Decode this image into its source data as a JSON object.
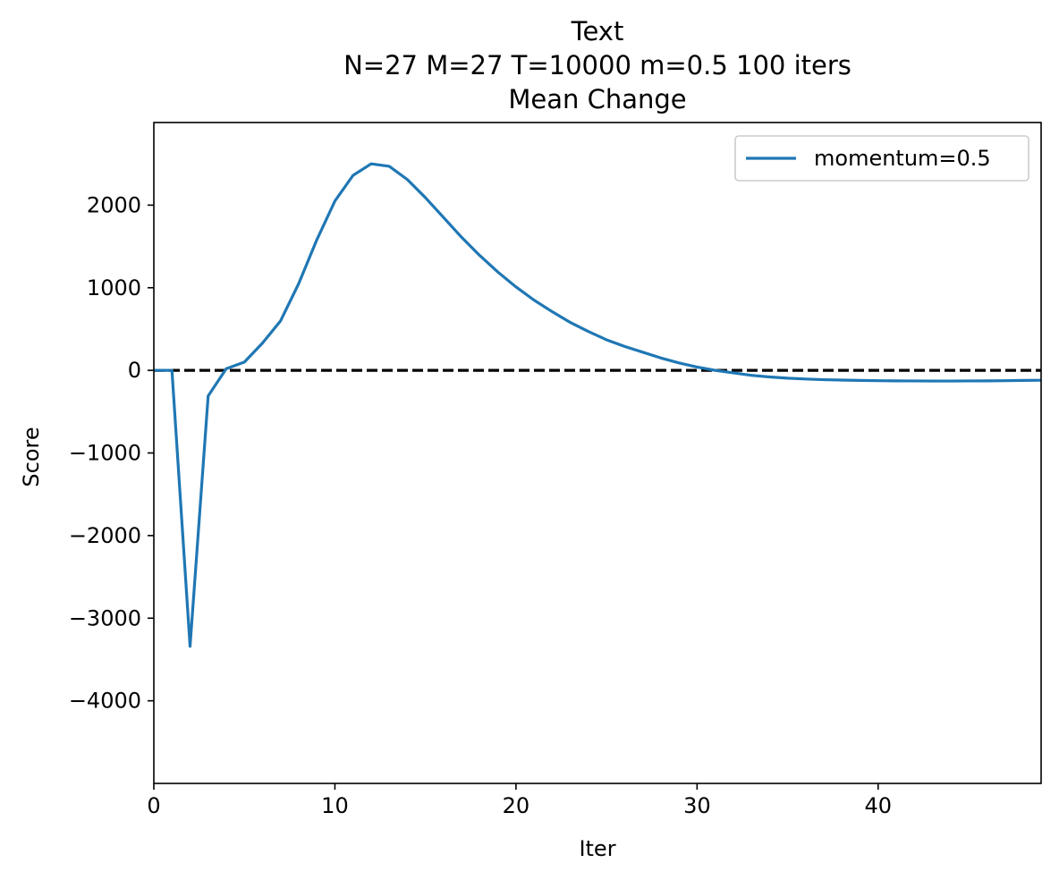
{
  "chart_data": {
    "type": "line",
    "title_lines": [
      "Text",
      "N=27 M=27 T=10000 m=0.5 100 iters",
      "Mean Change"
    ],
    "xlabel": "Iter",
    "ylabel": "Score",
    "xlim": [
      0,
      49
    ],
    "ylim": [
      -5000,
      3000
    ],
    "x_ticks": [
      0,
      10,
      20,
      30,
      40
    ],
    "x_tick_labels": [
      "0",
      "10",
      "20",
      "30",
      "40"
    ],
    "y_ticks": [
      2000,
      1000,
      0,
      -1000,
      -2000,
      -3000,
      -4000
    ],
    "y_tick_labels": [
      "2000",
      "1000",
      "0",
      "−1000",
      "−2000",
      "−3000",
      "−4000"
    ],
    "grid": false,
    "legend_position": "top-right",
    "reference_line": {
      "y": 0,
      "style": "dashed",
      "color": "#000000"
    },
    "series": [
      {
        "name": "momentum=0.5",
        "color": "#1f77b4",
        "x": [
          0,
          1,
          2,
          3,
          4,
          5,
          6,
          7,
          8,
          9,
          10,
          11,
          12,
          13,
          14,
          15,
          16,
          17,
          18,
          19,
          20,
          21,
          22,
          23,
          24,
          25,
          26,
          27,
          28,
          29,
          30,
          31,
          32,
          33,
          34,
          35,
          36,
          37,
          38,
          39,
          40,
          41,
          42,
          43,
          44,
          45,
          46,
          47,
          48,
          49
        ],
        "y": [
          0,
          0,
          -3340,
          -310,
          20,
          100,
          330,
          600,
          1050,
          1580,
          2050,
          2360,
          2500,
          2470,
          2310,
          2090,
          1850,
          1610,
          1390,
          1190,
          1010,
          850,
          710,
          580,
          470,
          370,
          290,
          220,
          150,
          90,
          40,
          0,
          -30,
          -60,
          -80,
          -95,
          -105,
          -113,
          -118,
          -122,
          -125,
          -127,
          -128,
          -129,
          -129,
          -128,
          -127,
          -125,
          -122,
          -120
        ]
      }
    ]
  }
}
